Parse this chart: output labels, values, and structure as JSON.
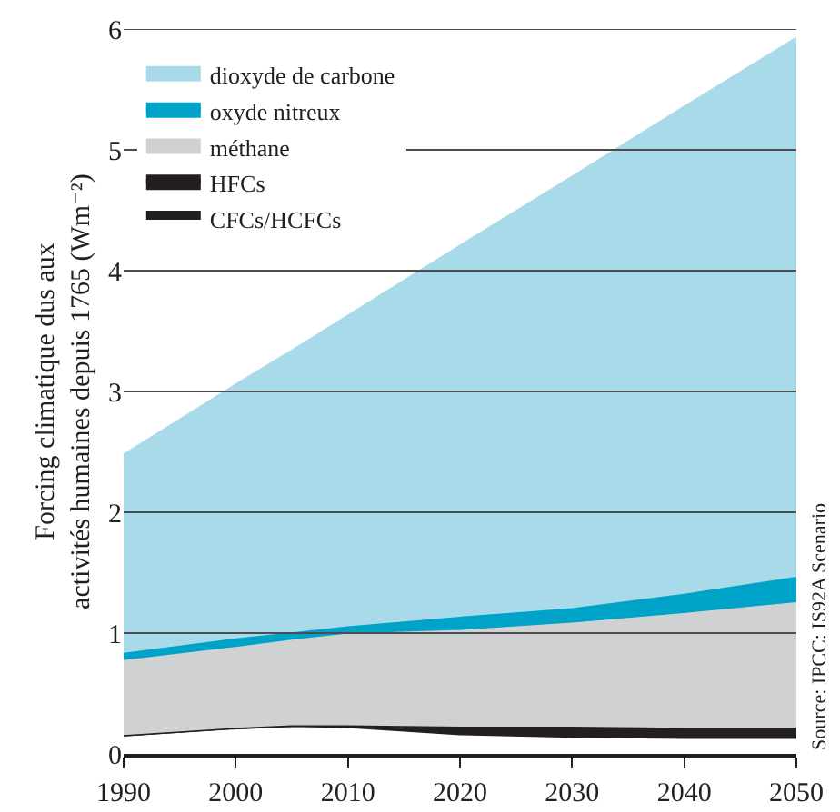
{
  "chart_data": {
    "type": "area",
    "stacked": true,
    "ylabel": "Forcing climatique dus aux activités humaines depuis 1765 (Wm⁻²)",
    "x": [
      1990,
      2000,
      2005,
      2010,
      2020,
      2030,
      2040,
      2050
    ],
    "series": [
      {
        "name": "CFCs/HCFCs",
        "color": "#ffffff",
        "values": [
          0.15,
          0.21,
          0.23,
          0.22,
          0.16,
          0.14,
          0.13,
          0.13
        ]
      },
      {
        "name": "HFCs",
        "color": "#231f20",
        "values": [
          0,
          0,
          0,
          0.01,
          0.06,
          0.08,
          0.08,
          0.08
        ]
      },
      {
        "name": "méthane",
        "color": "#d0d1d3",
        "values": [
          0.62,
          0.67,
          0.71,
          0.76,
          0.8,
          0.86,
          0.95,
          1.04
        ]
      },
      {
        "name": "oxyde nitreux",
        "color": "#00a3c8",
        "values": [
          0.06,
          0.07,
          0.06,
          0.06,
          0.11,
          0.12,
          0.16,
          0.21
        ]
      },
      {
        "name": "dioxyde de carbone",
        "color": "#a8daea",
        "values": [
          1.65,
          2.11,
          2.34,
          2.58,
          3.08,
          3.58,
          4.04,
          4.47
        ]
      }
    ],
    "xlim": [
      1990,
      2050
    ],
    "xticks": [
      1990,
      2000,
      2010,
      2020,
      2030,
      2040,
      2050
    ],
    "ylim": [
      0,
      6
    ],
    "yticks": [
      0,
      1,
      2,
      3,
      4,
      5,
      6
    ],
    "grid": "y",
    "legend": "top left",
    "annotations": [
      "Source: IPCC: IS92A Scenario"
    ]
  }
}
